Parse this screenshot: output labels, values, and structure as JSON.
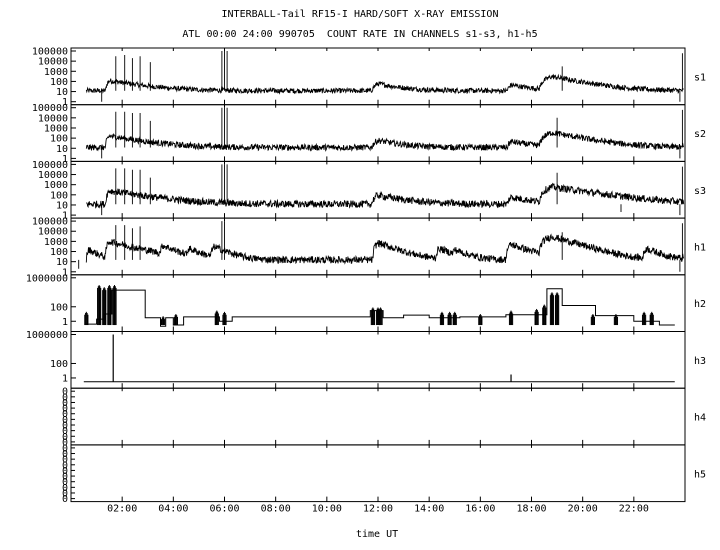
{
  "chart_data": {
    "type": "line",
    "title": "INTERBALL-Tail RF15-I HARD/SOFT X-RAY EMISSION",
    "subtitle": "ATL 00:00 24:00 990705  COUNT RATE IN CHANNELS s1-s3, h1-h5",
    "xlabel": "time UT",
    "x_unit": "hours UT",
    "xlim": [
      0,
      24
    ],
    "x_ticks": [
      {
        "label": "02:00",
        "value": 2
      },
      {
        "label": "04:00",
        "value": 4
      },
      {
        "label": "06:00",
        "value": 6
      },
      {
        "label": "08:00",
        "value": 8
      },
      {
        "label": "10:00",
        "value": 10
      },
      {
        "label": "12:00",
        "value": 12
      },
      {
        "label": "14:00",
        "value": 14
      },
      {
        "label": "16:00",
        "value": 16
      },
      {
        "label": "18:00",
        "value": 18
      },
      {
        "label": "20:00",
        "value": 20
      },
      {
        "label": "22:00",
        "value": 22
      }
    ],
    "y_scale": "log",
    "panels": [
      {
        "name": "s1",
        "ylim": [
          1,
          100000
        ],
        "y_ticks": [
          {
            "label": "100000",
            "value": 100000
          },
          {
            "label": "10000",
            "value": 10000
          },
          {
            "label": "1000",
            "value": 1000
          },
          {
            "label": "100",
            "value": 100
          },
          {
            "label": "10",
            "value": 10
          },
          {
            "label": "1",
            "value": 1
          }
        ],
        "baseline": 12,
        "noise_decades": 0.25,
        "events": [
          {
            "t": 1.5,
            "peak": 120,
            "rise": 0.15,
            "decay": 1.0
          },
          {
            "t": 12.0,
            "peak": 60,
            "rise": 0.25,
            "decay": 0.7
          },
          {
            "t": 17.2,
            "peak": 45,
            "rise": 0.15,
            "decay": 0.7
          },
          {
            "t": 18.8,
            "peak": 300,
            "rise": 0.5,
            "decay": 0.9
          }
        ],
        "spikes": [
          {
            "t": 1.75,
            "value": 30000
          },
          {
            "t": 2.1,
            "value": 40000
          },
          {
            "t": 2.4,
            "value": 20000
          },
          {
            "t": 2.7,
            "value": 30000
          },
          {
            "t": 3.1,
            "value": 8000
          },
          {
            "t": 5.9,
            "value": 100000
          },
          {
            "t": 6.0,
            "value": 100000
          },
          {
            "t": 6.1,
            "value": 100000
          },
          {
            "t": 19.2,
            "value": 3000
          },
          {
            "t": 23.9,
            "value": 60000
          }
        ],
        "dips": [
          {
            "t": 1.2,
            "value": 1
          },
          {
            "t": 23.8,
            "value": 1
          }
        ]
      },
      {
        "name": "s2",
        "ylim": [
          1,
          100000
        ],
        "y_ticks": [
          {
            "label": "100000",
            "value": 100000
          },
          {
            "label": "10000",
            "value": 10000
          },
          {
            "label": "1000",
            "value": 1000
          },
          {
            "label": "100",
            "value": 100
          },
          {
            "label": "10",
            "value": 10
          },
          {
            "label": "1",
            "value": 1
          }
        ],
        "baseline": 12,
        "noise_decades": 0.3,
        "events": [
          {
            "t": 1.5,
            "peak": 160,
            "rise": 0.15,
            "decay": 1.0
          },
          {
            "t": 12.0,
            "peak": 60,
            "rise": 0.25,
            "decay": 0.7
          },
          {
            "t": 17.2,
            "peak": 45,
            "rise": 0.15,
            "decay": 0.7
          },
          {
            "t": 18.8,
            "peak": 350,
            "rise": 0.5,
            "decay": 0.9
          }
        ],
        "spikes": [
          {
            "t": 1.75,
            "value": 40000
          },
          {
            "t": 2.1,
            "value": 40000
          },
          {
            "t": 2.4,
            "value": 30000
          },
          {
            "t": 2.7,
            "value": 30000
          },
          {
            "t": 3.1,
            "value": 5000
          },
          {
            "t": 5.9,
            "value": 100000
          },
          {
            "t": 6.0,
            "value": 100000
          },
          {
            "t": 6.1,
            "value": 100000
          },
          {
            "t": 19.0,
            "value": 10000
          },
          {
            "t": 23.9,
            "value": 60000
          }
        ],
        "dips": [
          {
            "t": 1.2,
            "value": 1
          },
          {
            "t": 23.8,
            "value": 1
          }
        ]
      },
      {
        "name": "s3",
        "ylim": [
          1,
          100000
        ],
        "y_ticks": [
          {
            "label": "100000",
            "value": 100000
          },
          {
            "label": "10000",
            "value": 10000
          },
          {
            "label": "1000",
            "value": 1000
          },
          {
            "label": "100",
            "value": 100
          },
          {
            "label": "10",
            "value": 10
          },
          {
            "label": "1",
            "value": 1
          }
        ],
        "baseline": 12,
        "noise_decades": 0.35,
        "events": [
          {
            "t": 1.5,
            "peak": 250,
            "rise": 0.15,
            "decay": 1.1
          },
          {
            "t": 12.0,
            "peak": 90,
            "rise": 0.25,
            "decay": 0.8
          },
          {
            "t": 17.2,
            "peak": 60,
            "rise": 0.15,
            "decay": 0.7
          },
          {
            "t": 18.8,
            "peak": 600,
            "rise": 0.5,
            "decay": 1.2
          }
        ],
        "spikes": [
          {
            "t": 1.75,
            "value": 40000
          },
          {
            "t": 2.1,
            "value": 40000
          },
          {
            "t": 2.4,
            "value": 30000
          },
          {
            "t": 2.7,
            "value": 30000
          },
          {
            "t": 3.1,
            "value": 5000
          },
          {
            "t": 5.9,
            "value": 100000
          },
          {
            "t": 6.0,
            "value": 100000
          },
          {
            "t": 6.1,
            "value": 100000
          },
          {
            "t": 19.0,
            "value": 15000
          },
          {
            "t": 23.9,
            "value": 60000
          }
        ],
        "dips": [
          {
            "t": 1.2,
            "value": 1
          },
          {
            "t": 21.5,
            "value": 2
          },
          {
            "t": 23.8,
            "value": 1
          }
        ]
      },
      {
        "name": "h1",
        "ylim": [
          1,
          100000
        ],
        "y_ticks": [
          {
            "label": "100000",
            "value": 100000
          },
          {
            "label": "10000",
            "value": 10000
          },
          {
            "label": "1000",
            "value": 1000
          },
          {
            "label": "100",
            "value": 100
          },
          {
            "label": "10",
            "value": 10
          },
          {
            "label": "1",
            "value": 1
          }
        ],
        "baseline": 15,
        "noise_decades": 0.35,
        "events": [
          {
            "t": 0.7,
            "peak": 150,
            "rise": 0.1,
            "decay": 0.3
          },
          {
            "t": 1.5,
            "peak": 1000,
            "rise": 0.15,
            "decay": 0.7
          },
          {
            "t": 3.6,
            "peak": 400,
            "rise": 0.15,
            "decay": 0.4
          },
          {
            "t": 4.6,
            "peak": 200,
            "rise": 0.1,
            "decay": 0.4
          },
          {
            "t": 5.6,
            "peak": 300,
            "rise": 0.15,
            "decay": 0.4
          },
          {
            "t": 12.0,
            "peak": 700,
            "rise": 0.2,
            "decay": 0.5
          },
          {
            "t": 14.4,
            "peak": 200,
            "rise": 0.15,
            "decay": 0.4
          },
          {
            "t": 15.0,
            "peak": 150,
            "rise": 0.15,
            "decay": 0.4
          },
          {
            "t": 17.2,
            "peak": 500,
            "rise": 0.2,
            "decay": 0.5
          },
          {
            "t": 18.8,
            "peak": 3000,
            "rise": 0.5,
            "decay": 0.6
          },
          {
            "t": 20.7,
            "peak": 150,
            "rise": 0.15,
            "decay": 0.4
          },
          {
            "t": 22.5,
            "peak": 200,
            "rise": 0.15,
            "decay": 0.4
          }
        ],
        "spikes": [
          {
            "t": 1.75,
            "value": 40000
          },
          {
            "t": 2.1,
            "value": 40000
          },
          {
            "t": 2.4,
            "value": 20000
          },
          {
            "t": 2.7,
            "value": 30000
          },
          {
            "t": 5.9,
            "value": 100000
          },
          {
            "t": 6.0,
            "value": 100000
          },
          {
            "t": 19.2,
            "value": 8000
          },
          {
            "t": 23.9,
            "value": 60000
          }
        ],
        "dips": [
          {
            "t": 0.3,
            "value": 2
          },
          {
            "t": 23.8,
            "value": 1
          }
        ]
      },
      {
        "name": "h2",
        "ylim": [
          0.1,
          1000000
        ],
        "y_ticks": [
          {
            "label": "1000000",
            "value": 1000000
          },
          {
            "label": "100",
            "value": 100
          },
          {
            "label": "1",
            "value": 1
          }
        ],
        "step_levels": [
          {
            "t0": 0.6,
            "t1": 1.0,
            "v": 0.4
          },
          {
            "t0": 1.0,
            "t1": 1.3,
            "v": 2
          },
          {
            "t0": 1.3,
            "t1": 1.6,
            "v": 10
          },
          {
            "t0": 1.6,
            "t1": 2.9,
            "v": 20000
          },
          {
            "t0": 2.9,
            "t1": 3.5,
            "v": 3
          },
          {
            "t0": 3.5,
            "t1": 3.7,
            "v": 0.2
          },
          {
            "t0": 3.7,
            "t1": 4.0,
            "v": 3
          },
          {
            "t0": 4.0,
            "t1": 4.4,
            "v": 0.3
          },
          {
            "t0": 4.4,
            "t1": 5.8,
            "v": 4
          },
          {
            "t0": 5.8,
            "t1": 6.3,
            "v": 1
          },
          {
            "t0": 6.3,
            "t1": 11.7,
            "v": 4
          },
          {
            "t0": 11.7,
            "t1": 12.2,
            "v": 30
          },
          {
            "t0": 12.2,
            "t1": 13.0,
            "v": 3
          },
          {
            "t0": 13.0,
            "t1": 14.0,
            "v": 7
          },
          {
            "t0": 14.0,
            "t1": 15.2,
            "v": 3
          },
          {
            "t0": 15.2,
            "t1": 17.0,
            "v": 4
          },
          {
            "t0": 17.0,
            "t1": 18.6,
            "v": 8
          },
          {
            "t0": 18.6,
            "t1": 19.2,
            "v": 30000
          },
          {
            "t0": 19.2,
            "t1": 20.5,
            "v": 150
          },
          {
            "t0": 20.5,
            "t1": 22.0,
            "v": 6
          },
          {
            "t0": 22.0,
            "t1": 23.0,
            "v": 1
          },
          {
            "t0": 23.0,
            "t1": 23.6,
            "v": 0.3
          }
        ],
        "bursts": [
          {
            "t": 0.6,
            "lo": 0.3,
            "hi": 20
          },
          {
            "t": 1.1,
            "lo": 0.3,
            "hi": 100000
          },
          {
            "t": 1.3,
            "lo": 0.3,
            "hi": 50000
          },
          {
            "t": 1.5,
            "lo": 0.3,
            "hi": 100000
          },
          {
            "t": 1.7,
            "lo": 0.3,
            "hi": 100000
          },
          {
            "t": 3.6,
            "lo": 0.3,
            "hi": 5
          },
          {
            "t": 4.1,
            "lo": 0.3,
            "hi": 10
          },
          {
            "t": 5.7,
            "lo": 0.3,
            "hi": 30
          },
          {
            "t": 6.0,
            "lo": 0.3,
            "hi": 20
          },
          {
            "t": 11.8,
            "lo": 0.3,
            "hi": 80
          },
          {
            "t": 12.0,
            "lo": 0.3,
            "hi": 80
          },
          {
            "t": 12.1,
            "lo": 0.3,
            "hi": 80
          },
          {
            "t": 14.5,
            "lo": 0.3,
            "hi": 20
          },
          {
            "t": 14.8,
            "lo": 0.3,
            "hi": 20
          },
          {
            "t": 15.0,
            "lo": 0.3,
            "hi": 20
          },
          {
            "t": 16.0,
            "lo": 0.3,
            "hi": 10
          },
          {
            "t": 17.2,
            "lo": 0.3,
            "hi": 30
          },
          {
            "t": 18.2,
            "lo": 0.3,
            "hi": 50
          },
          {
            "t": 18.5,
            "lo": 0.3,
            "hi": 200
          },
          {
            "t": 18.8,
            "lo": 0.3,
            "hi": 10000
          },
          {
            "t": 19.0,
            "lo": 0.3,
            "hi": 10000
          },
          {
            "t": 20.4,
            "lo": 0.3,
            "hi": 10
          },
          {
            "t": 21.3,
            "lo": 0.3,
            "hi": 10
          },
          {
            "t": 22.4,
            "lo": 0.3,
            "hi": 20
          },
          {
            "t": 22.7,
            "lo": 0.3,
            "hi": 20
          }
        ]
      },
      {
        "name": "h3",
        "ylim": [
          0.1,
          1000000
        ],
        "y_ticks": [
          {
            "label": "1000000",
            "value": 1000000
          },
          {
            "label": "100",
            "value": 100
          },
          {
            "label": "1",
            "value": 1
          }
        ],
        "baseline": 0.3,
        "line_range": [
          0.5,
          23.6
        ],
        "spikes": [
          {
            "t": 1.65,
            "value": 1000000
          },
          {
            "t": 17.2,
            "value": 3
          }
        ]
      },
      {
        "name": "h4",
        "y_ticks_repeated": {
          "label": "0",
          "count": 10
        },
        "values": []
      },
      {
        "name": "h5",
        "y_ticks_repeated": {
          "label": "0",
          "count": 10
        },
        "values": []
      }
    ]
  }
}
